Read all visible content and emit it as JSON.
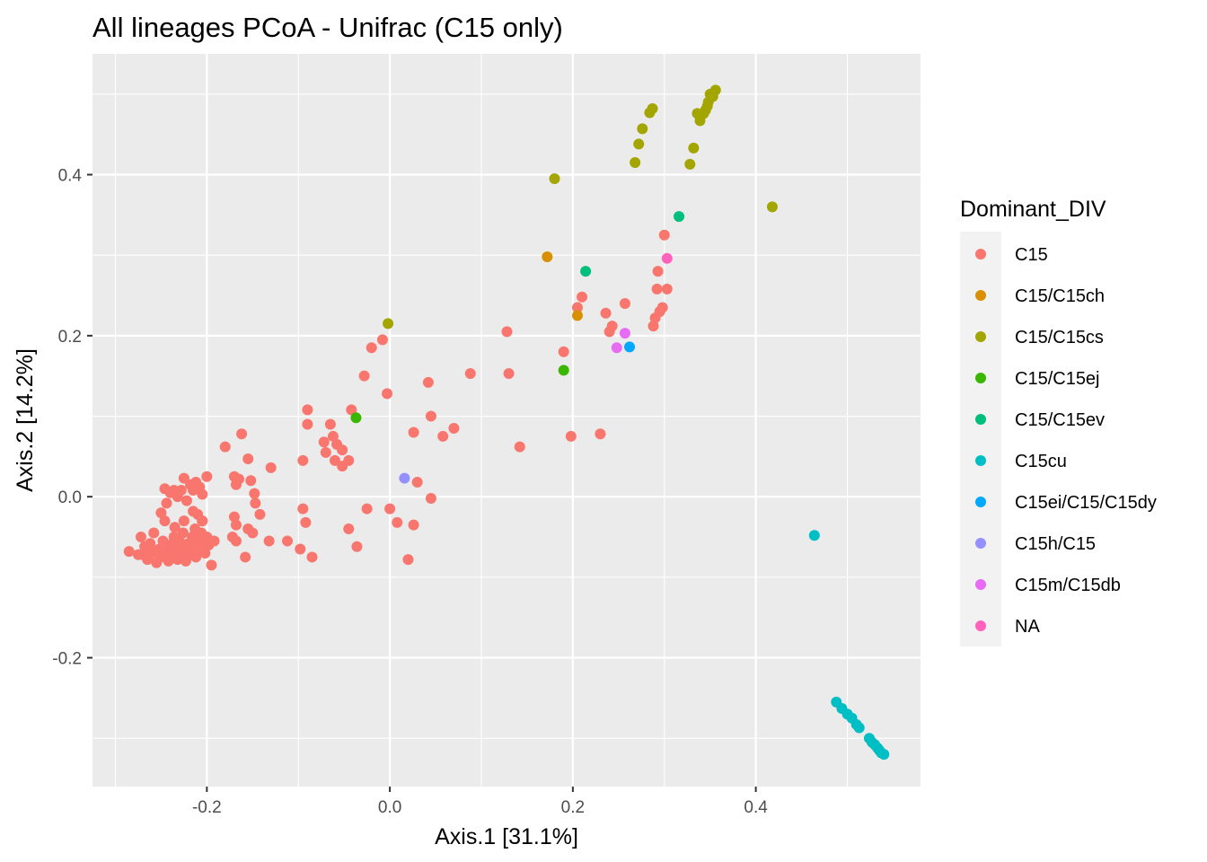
{
  "chart_data": {
    "type": "scatter",
    "title": "All lineages PCoA - Unifrac (C15 only)",
    "xlabel": "Axis.1   [31.1%]",
    "ylabel": "Axis.2   [14.2%]",
    "xlim": [
      -0.325,
      0.58
    ],
    "ylim": [
      -0.36,
      0.55
    ],
    "x_ticks": [
      -0.2,
      0.0,
      0.2,
      0.4
    ],
    "x_tick_labels": [
      "-0.2",
      "0.0",
      "0.2",
      "0.4"
    ],
    "y_ticks": [
      -0.2,
      0.0,
      0.2,
      0.4
    ],
    "y_tick_labels": [
      "-0.2",
      "0.0",
      "0.2",
      "0.4"
    ],
    "grid": true,
    "legend_title": "Dominant_DIV",
    "legend_position": "right",
    "series": [
      {
        "name": "C15",
        "color": "#F8766D",
        "points": [
          [
            -0.285,
            -0.068
          ],
          [
            -0.275,
            -0.072
          ],
          [
            -0.272,
            -0.05
          ],
          [
            -0.268,
            -0.062
          ],
          [
            -0.265,
            -0.078
          ],
          [
            -0.262,
            -0.058
          ],
          [
            -0.26,
            -0.07
          ],
          [
            -0.258,
            -0.045
          ],
          [
            -0.255,
            -0.082
          ],
          [
            -0.252,
            -0.065
          ],
          [
            -0.25,
            -0.075
          ],
          [
            -0.248,
            -0.055
          ],
          [
            -0.246,
            -0.03
          ],
          [
            -0.245,
            -0.068
          ],
          [
            -0.242,
            -0.08
          ],
          [
            -0.24,
            -0.06
          ],
          [
            -0.238,
            -0.072
          ],
          [
            -0.236,
            -0.05
          ],
          [
            -0.235,
            -0.038
          ],
          [
            -0.233,
            -0.065
          ],
          [
            -0.232,
            -0.078
          ],
          [
            -0.23,
            -0.055
          ],
          [
            -0.228,
            -0.07
          ],
          [
            -0.226,
            -0.045
          ],
          [
            -0.225,
            -0.062
          ],
          [
            -0.223,
            -0.08
          ],
          [
            -0.222,
            -0.068
          ],
          [
            -0.22,
            -0.058
          ],
          [
            -0.218,
            -0.072
          ],
          [
            -0.216,
            -0.05
          ],
          [
            -0.215,
            -0.065
          ],
          [
            -0.213,
            -0.04
          ],
          [
            -0.212,
            -0.075
          ],
          [
            -0.21,
            -0.055
          ],
          [
            -0.208,
            -0.06
          ],
          [
            -0.206,
            -0.045
          ],
          [
            -0.205,
            -0.03
          ],
          [
            -0.204,
            -0.068
          ],
          [
            -0.202,
            -0.07
          ],
          [
            -0.2,
            -0.05
          ],
          [
            -0.198,
            -0.06
          ],
          [
            -0.195,
            -0.085
          ],
          [
            -0.192,
            -0.055
          ],
          [
            -0.27,
            -0.072
          ],
          [
            -0.257,
            -0.068
          ],
          [
            -0.247,
            -0.072
          ],
          [
            -0.237,
            -0.06
          ],
          [
            -0.227,
            -0.066
          ],
          [
            -0.217,
            -0.062
          ],
          [
            -0.207,
            -0.058
          ],
          [
            -0.244,
            -0.008
          ],
          [
            -0.246,
            0.01
          ],
          [
            -0.24,
            0.005
          ],
          [
            -0.236,
            0.008
          ],
          [
            -0.232,
            0.0
          ],
          [
            -0.228,
            0.008
          ],
          [
            -0.225,
            0.023
          ],
          [
            -0.222,
            -0.005
          ],
          [
            -0.218,
            0.015
          ],
          [
            -0.215,
            0.008
          ],
          [
            -0.212,
            0.018
          ],
          [
            -0.208,
            0.012
          ],
          [
            -0.205,
            0.003
          ],
          [
            -0.2,
            0.025
          ],
          [
            -0.225,
            -0.03
          ],
          [
            -0.215,
            -0.018
          ],
          [
            -0.21,
            -0.022
          ],
          [
            -0.205,
            -0.03
          ],
          [
            -0.25,
            -0.02
          ],
          [
            -0.18,
            0.062
          ],
          [
            -0.17,
            0.025
          ],
          [
            -0.168,
            0.015
          ],
          [
            -0.165,
            0.022
          ],
          [
            -0.162,
            0.078
          ],
          [
            -0.155,
            0.047
          ],
          [
            -0.152,
            0.02
          ],
          [
            -0.148,
            0.004
          ],
          [
            -0.147,
            -0.008
          ],
          [
            -0.142,
            -0.022
          ],
          [
            -0.13,
            0.036
          ],
          [
            -0.17,
            -0.025
          ],
          [
            -0.168,
            -0.035
          ],
          [
            -0.172,
            -0.05
          ],
          [
            -0.168,
            -0.055
          ],
          [
            -0.158,
            -0.075
          ],
          [
            -0.155,
            -0.04
          ],
          [
            -0.15,
            -0.045
          ],
          [
            -0.132,
            -0.055
          ],
          [
            -0.112,
            -0.055
          ],
          [
            -0.098,
            -0.065
          ],
          [
            -0.085,
            -0.075
          ],
          [
            -0.092,
            -0.032
          ],
          [
            -0.095,
            -0.015
          ],
          [
            -0.09,
            0.108
          ],
          [
            -0.09,
            0.09
          ],
          [
            -0.095,
            0.045
          ],
          [
            -0.072,
            0.068
          ],
          [
            -0.07,
            0.055
          ],
          [
            -0.065,
            0.09
          ],
          [
            -0.062,
            0.075
          ],
          [
            -0.06,
            0.045
          ],
          [
            -0.058,
            0.065
          ],
          [
            -0.052,
            0.058
          ],
          [
            -0.052,
            0.038
          ],
          [
            -0.045,
            0.045
          ],
          [
            -0.045,
            -0.04
          ],
          [
            -0.036,
            -0.062
          ],
          [
            -0.025,
            -0.015
          ],
          [
            -0.042,
            0.108
          ],
          [
            -0.028,
            0.15
          ],
          [
            -0.02,
            0.185
          ],
          [
            -0.008,
            0.195
          ],
          [
            -0.003,
            0.128
          ],
          [
            0.0,
            -0.015
          ],
          [
            0.008,
            -0.032
          ],
          [
            0.02,
            -0.078
          ],
          [
            0.026,
            -0.035
          ],
          [
            0.03,
            0.018
          ],
          [
            0.026,
            0.08
          ],
          [
            0.042,
            0.142
          ],
          [
            0.045,
            0.1
          ],
          [
            0.045,
            -0.002
          ],
          [
            0.058,
            0.075
          ],
          [
            0.07,
            0.085
          ],
          [
            0.088,
            0.153
          ],
          [
            0.128,
            0.205
          ],
          [
            0.13,
            0.153
          ],
          [
            0.142,
            0.062
          ],
          [
            0.19,
            0.18
          ],
          [
            0.198,
            0.075
          ],
          [
            0.205,
            0.235
          ],
          [
            0.21,
            0.248
          ],
          [
            0.23,
            0.078
          ],
          [
            0.236,
            0.228
          ],
          [
            0.24,
            0.205
          ],
          [
            0.243,
            0.212
          ],
          [
            0.257,
            0.24
          ],
          [
            0.288,
            0.212
          ],
          [
            0.29,
            0.222
          ],
          [
            0.292,
            0.258
          ],
          [
            0.293,
            0.28
          ],
          [
            0.295,
            0.23
          ],
          [
            0.298,
            0.235
          ],
          [
            0.3,
            0.325
          ],
          [
            0.303,
            0.258
          ]
        ]
      },
      {
        "name": "C15/C15ch",
        "color": "#D89000",
        "points": [
          [
            0.172,
            0.298
          ],
          [
            0.205,
            0.225
          ]
        ]
      },
      {
        "name": "C15/C15cs",
        "color": "#A3A500",
        "points": [
          [
            -0.002,
            0.215
          ],
          [
            0.18,
            0.395
          ],
          [
            0.268,
            0.415
          ],
          [
            0.272,
            0.438
          ],
          [
            0.276,
            0.457
          ],
          [
            0.284,
            0.477
          ],
          [
            0.287,
            0.482
          ],
          [
            0.328,
            0.413
          ],
          [
            0.332,
            0.433
          ],
          [
            0.336,
            0.476
          ],
          [
            0.339,
            0.467
          ],
          [
            0.343,
            0.476
          ],
          [
            0.345,
            0.48
          ],
          [
            0.347,
            0.485
          ],
          [
            0.348,
            0.49
          ],
          [
            0.35,
            0.5
          ],
          [
            0.353,
            0.497
          ],
          [
            0.356,
            0.505
          ],
          [
            0.418,
            0.36
          ]
        ]
      },
      {
        "name": "C15/C15ej",
        "color": "#39B600",
        "points": [
          [
            -0.037,
            0.098
          ],
          [
            0.19,
            0.157
          ]
        ]
      },
      {
        "name": "C15/C15ev",
        "color": "#00BF7D",
        "points": [
          [
            0.214,
            0.28
          ],
          [
            0.316,
            0.348
          ]
        ]
      },
      {
        "name": "C15cu",
        "color": "#00BFC4",
        "points": [
          [
            0.464,
            -0.048
          ],
          [
            0.488,
            -0.255
          ],
          [
            0.494,
            -0.263
          ],
          [
            0.5,
            -0.27
          ],
          [
            0.505,
            -0.275
          ],
          [
            0.51,
            -0.283
          ],
          [
            0.513,
            -0.287
          ],
          [
            0.524,
            -0.3
          ],
          [
            0.527,
            -0.305
          ],
          [
            0.53,
            -0.308
          ],
          [
            0.533,
            -0.312
          ],
          [
            0.535,
            -0.315
          ],
          [
            0.537,
            -0.318
          ],
          [
            0.54,
            -0.32
          ]
        ]
      },
      {
        "name": "C15ei/C15/C15dy",
        "color": "#00A9FF",
        "points": [
          [
            0.262,
            0.186
          ]
        ]
      },
      {
        "name": "C15h/C15",
        "color": "#9590FF",
        "points": [
          [
            0.016,
            0.023
          ]
        ]
      },
      {
        "name": "C15m/C15db",
        "color": "#E76BF3",
        "points": [
          [
            0.248,
            0.185
          ],
          [
            0.257,
            0.203
          ]
        ]
      },
      {
        "name": "NA",
        "color": "#FF62BC",
        "points": [
          [
            0.303,
            0.296
          ]
        ]
      }
    ]
  }
}
